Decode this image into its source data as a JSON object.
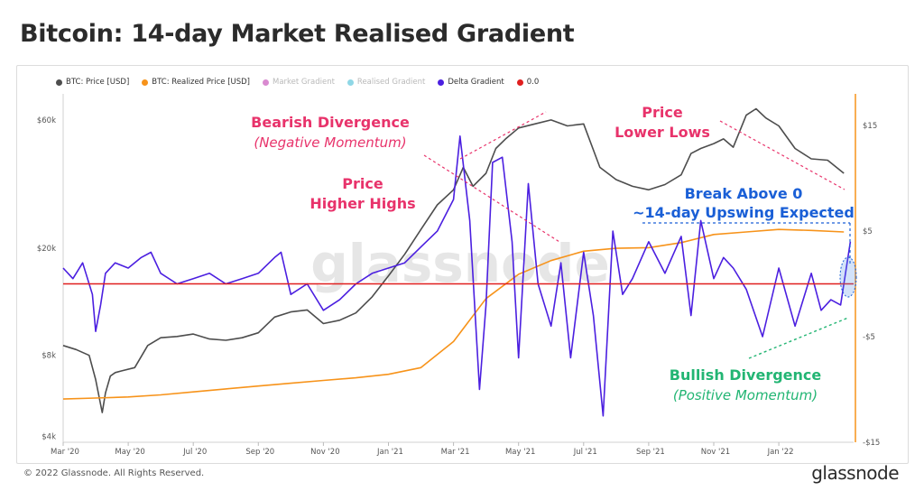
{
  "title": "Bitcoin: 14-day Market Realised Gradient",
  "footer": "© 2022 Glassnode. All Rights Reserved.",
  "brand": "glassnode",
  "watermark": "glassnode",
  "legend": [
    {
      "label": "BTC: Price [USD]",
      "color": "#4d4d4d",
      "muted": false
    },
    {
      "label": "BTC: Realized Price [USD]",
      "color": "#f7931a",
      "muted": false
    },
    {
      "label": "Market Gradient",
      "color": "#d98ad0",
      "muted": true
    },
    {
      "label": "Realised Gradient",
      "color": "#8fd7e6",
      "muted": true
    },
    {
      "label": "Delta Gradient",
      "color": "#4b1fe0",
      "muted": false
    },
    {
      "label": "0.0",
      "color": "#e01f1f",
      "muted": false
    }
  ],
  "annotations": {
    "bearish_title": "Bearish Divergence",
    "bearish_sub": "(Negative Momentum)",
    "price_hh_1": "Price",
    "price_hh_2": "Higher Highs",
    "price_ll_1": "Price",
    "price_ll_2": "Lower Lows",
    "break_1": "Break Above 0",
    "break_2": "~14-day Upswing Expected",
    "bullish_title": "Bullish Divergence",
    "bullish_sub": "(Positive Momentum)"
  },
  "chart_data": {
    "type": "line",
    "title": "Bitcoin: 14-day Market Realised Gradient",
    "x_ticks": [
      "Mar '20",
      "May '20",
      "Jul '20",
      "Sep '20",
      "Nov '20",
      "Jan '21",
      "Mar '21",
      "May '21",
      "Jul '21",
      "Sep '21",
      "Nov '21",
      "Jan '22"
    ],
    "y_left_ticks": [
      "$60k",
      "$20k",
      "$8k",
      "$4k"
    ],
    "y_left_tick_values": [
      60000,
      20000,
      8000,
      4000
    ],
    "y_left_scale": "log",
    "y_left_range": [
      3800,
      75000
    ],
    "y_right_ticks": [
      "$15",
      "$5",
      "-$5",
      "-$15"
    ],
    "y_right_tick_values": [
      15,
      5,
      -5,
      -15
    ],
    "y_right_range": [
      -15,
      18
    ],
    "x_range_months": [
      0,
      24.3
    ],
    "zero_line": 0.0,
    "series": [
      {
        "name": "BTC: Price [USD]",
        "axis": "left",
        "color": "#4d4d4d",
        "x": [
          0,
          0.4,
          0.8,
          1.0,
          1.2,
          1.3,
          1.45,
          1.6,
          1.8,
          2.2,
          2.6,
          3.0,
          3.5,
          4.0,
          4.5,
          5.0,
          5.5,
          6.0,
          6.5,
          7.0,
          7.5,
          8.0,
          8.5,
          9.0,
          9.5,
          10.0,
          10.5,
          11.0,
          11.5,
          12.0,
          12.3,
          12.6,
          13.0,
          13.3,
          13.6,
          14.0,
          14.5,
          15.0,
          15.5,
          16.0,
          16.5,
          17.0,
          17.5,
          18.0,
          18.5,
          19.0,
          19.3,
          19.6,
          20.0,
          20.3,
          20.6,
          21.0,
          21.3,
          21.6,
          22.0,
          22.5,
          23.0,
          23.5,
          24.0
        ],
        "y": [
          8700,
          8400,
          8000,
          6500,
          4900,
          5800,
          6700,
          6900,
          7000,
          7200,
          8700,
          9300,
          9400,
          9600,
          9200,
          9100,
          9300,
          9700,
          11100,
          11600,
          11800,
          10500,
          10800,
          11500,
          13200,
          15800,
          19000,
          23500,
          29000,
          33000,
          40000,
          34000,
          38000,
          47000,
          51000,
          56000,
          58000,
          60000,
          57000,
          58000,
          40000,
          36000,
          34000,
          33000,
          34500,
          37500,
          45000,
          47000,
          49000,
          51000,
          47500,
          62500,
          66000,
          61000,
          57000,
          47000,
          43000,
          42500,
          38000
        ]
      },
      {
        "name": "BTC: Realized Price [USD]",
        "axis": "left",
        "color": "#f7931a",
        "x": [
          0,
          1,
          2,
          3,
          4,
          5,
          6,
          7,
          8,
          9,
          10,
          11,
          12,
          13,
          14,
          15,
          16,
          17,
          18,
          19,
          20,
          21,
          22,
          23,
          24
        ],
        "y": [
          5500,
          5550,
          5600,
          5700,
          5850,
          6000,
          6150,
          6300,
          6450,
          6600,
          6800,
          7200,
          9000,
          13000,
          16000,
          18000,
          19500,
          20000,
          20100,
          21000,
          22500,
          23000,
          23500,
          23300,
          23000
        ]
      },
      {
        "name": "Delta Gradient",
        "axis": "right",
        "color": "#4b1fe0",
        "x": [
          0,
          0.3,
          0.6,
          0.9,
          1.0,
          1.15,
          1.3,
          1.6,
          2.0,
          2.4,
          2.7,
          3.0,
          3.5,
          4.0,
          4.5,
          5.0,
          5.5,
          6.0,
          6.5,
          6.7,
          7.0,
          7.5,
          8.0,
          8.5,
          9.0,
          9.5,
          10.0,
          10.5,
          11.0,
          11.5,
          12.0,
          12.2,
          12.5,
          12.8,
          13.0,
          13.2,
          13.5,
          13.8,
          14.0,
          14.3,
          14.6,
          15.0,
          15.3,
          15.6,
          16.0,
          16.3,
          16.6,
          16.9,
          17.2,
          17.5,
          18.0,
          18.5,
          19.0,
          19.3,
          19.6,
          20.0,
          20.3,
          20.6,
          21.0,
          21.5,
          22.0,
          22.5,
          23.0,
          23.3,
          23.6,
          23.9,
          24.2
        ],
        "y": [
          1.5,
          0.5,
          2.0,
          -1.0,
          -4.5,
          -2.0,
          1.0,
          2.0,
          1.5,
          2.5,
          3.0,
          1.0,
          0.0,
          0.5,
          1.0,
          0.0,
          0.5,
          1.0,
          2.5,
          3.0,
          -1.0,
          0.0,
          -2.5,
          -1.5,
          0.0,
          1.0,
          1.5,
          2.0,
          3.5,
          5.0,
          8.0,
          14.0,
          6.0,
          -10.0,
          -2.0,
          11.5,
          12.0,
          4.0,
          -7.0,
          9.5,
          0.0,
          -4.0,
          2.0,
          -7.0,
          3.0,
          -3.0,
          -12.5,
          5.0,
          -1.0,
          0.5,
          4.0,
          1.0,
          4.5,
          -3.0,
          6.0,
          0.5,
          2.5,
          1.5,
          -0.5,
          -5.0,
          1.5,
          -4.0,
          1.0,
          -2.5,
          -1.5,
          -2.0,
          4.0
        ]
      },
      {
        "name": "0.0",
        "axis": "right",
        "color": "#e01f1f",
        "x": [
          0,
          24.3
        ],
        "y": [
          0,
          0
        ]
      }
    ]
  }
}
